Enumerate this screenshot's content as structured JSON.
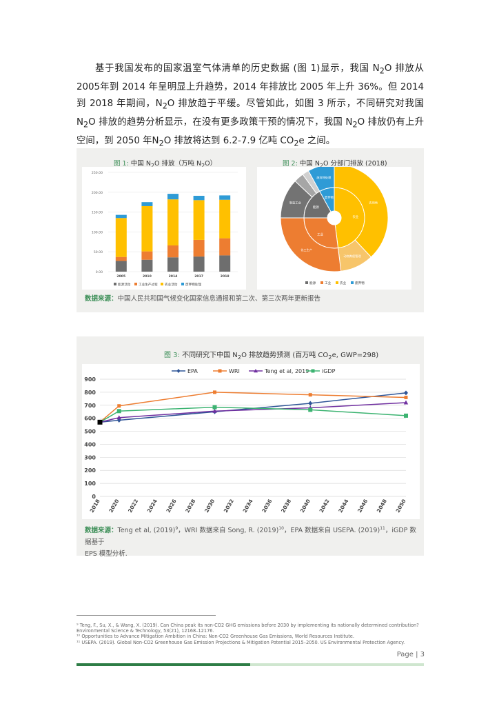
{
  "paragraph": {
    "l1": "基于我国发布的国家温室气体清单的历史数据 (图 1)显示，我国 N",
    "l1_sub": "2",
    "l1_end": "O 排放从 2005",
    "l2": "年到 2014 年呈明显上升趋势，2014 年排放比 2005 年上升 36%。但 2014 到 2018 年",
    "l3a": "期间，N",
    "l3_sub": "2",
    "l3b": "O 排放趋于平缓。尽管如此，如图 3 所示，不同研究对我国 N",
    "l3_sub2": "2",
    "l3c": "O 排放的趋势",
    "l4": "分析显示，在没有更多政策干预的情况下，我国 N",
    "l4_sub": "2",
    "l4b": "O 排放仍有上升空间，到 2050 年",
    "l5a": "N",
    "l5_sub": "2",
    "l5b": "O 排放将达到 6.2-7.9 亿吨 CO",
    "l5_sub2": "2",
    "l5c": "e 之间。"
  },
  "figure1": {
    "label": "图 1:",
    "title_a": "中国 N",
    "title_sub": "2",
    "title_b": "O 排放（万吨 N",
    "title_sub2": "2",
    "title_c": "O）"
  },
  "figure2": {
    "label": "图 2:",
    "title_a": "中国 N",
    "title_sub": "2",
    "title_b": "O 分部门排放 (2018)"
  },
  "source1": {
    "label": "数据来源：",
    "text": "中国人民共和国气候变化国家信息通报和第二次、第三次两年更新报告"
  },
  "figure3": {
    "label": "图 3:",
    "title_a": "不同研究下中国 N",
    "title_sub": "2",
    "title_b": "O 排放趋势预测 (百万吨 CO",
    "title_sub2": "2",
    "title_c": "e, GWP=298)"
  },
  "source3": {
    "label": "数据来源：",
    "text_a": "Teng et al, (2019)",
    "sup1": "9",
    "text_b": "，WRI 数据来自 Song, R. (2019)",
    "sup2": "10",
    "text_c": "，EPA 数据来自 USEPA. (2019)",
    "sup3": "11",
    "text_d": "，iGDP 数据基于",
    "line2": "EPS 模型分析."
  },
  "footnotes": [
    "⁹ Teng, F., Su, X., & Wang, X. (2019). Can China peak its non-CO2 GHG emissions before 2030 by implementing its nationally determined contribution?",
    "Environmental Science & Technology, 53(21), 12168–12176.",
    "¹⁰ Opportunities to Advance Mitigation Ambition in China: Non-CO2 Greenhouse Gas Emissions, World Resources Institute.",
    "¹¹ USEPA. (2019). Global Non-CO2 Greenhouse Gas Emission Projections & Mitigation Potential 2015–2050. US Environmental Protection Agency."
  ],
  "page": {
    "label": "Page | 3"
  },
  "colors": {
    "energy": "#6e6e6e",
    "industry": "#ed7d31",
    "agriculture": "#ffc000",
    "waste": "#2e9bd6",
    "epa": "#2f5597",
    "wri": "#ed7d31",
    "teng": "#7030a0",
    "igdp": "#3cb371"
  },
  "chart_data": [
    {
      "type": "bar",
      "stacked": true,
      "categories": [
        "2005",
        "2010",
        "2014",
        "2017",
        "2018"
      ],
      "series": [
        {
          "name": "能源活动",
          "values": [
            27,
            30,
            36,
            38,
            41
          ]
        },
        {
          "name": "工业生产过程",
          "values": [
            10,
            21,
            30,
            42,
            43
          ]
        },
        {
          "name": "农业活动",
          "values": [
            98,
            114,
            116,
            100,
            97
          ]
        },
        {
          "name": "废弃物处理",
          "values": [
            8,
            10,
            14,
            11,
            11
          ]
        }
      ],
      "y_ticks": [
        "250.00",
        "200.00",
        "150.00",
        "100.00",
        "50.00",
        "0.00"
      ],
      "ylim": [
        0,
        250
      ],
      "legend": "bottom"
    },
    {
      "type": "pie",
      "variant": "sunburst",
      "inner": [
        {
          "name": "农业",
          "value": 48
        },
        {
          "name": "工业",
          "value": 27
        },
        {
          "name": "能源",
          "value": 17
        },
        {
          "name": "废弃物",
          "value": 8
        }
      ],
      "outer": [
        {
          "name": "农用地",
          "group": "农业",
          "value": 38,
          "label": "农用地"
        },
        {
          "name": "动物粪便管理",
          "group": "农业",
          "value": 10,
          "label": "动物粪便管理"
        },
        {
          "name": "化工生产",
          "group": "工业",
          "value": 27,
          "label": "化工生产"
        },
        {
          "name": "制造工业",
          "group": "能源",
          "value": 12,
          "label": "制造工业"
        },
        {
          "name": "能源-其他1",
          "group": "能源",
          "value": 3,
          "label": ""
        },
        {
          "name": "能源-其他2",
          "group": "能源",
          "value": 2,
          "label": ""
        },
        {
          "name": "废弃物处理",
          "group": "废弃物",
          "value": 8,
          "label": "废弃物处理"
        }
      ],
      "inner_labels": {
        "农业": "农业",
        "工业": "工业",
        "能源": "能源",
        "废弃物": "废弃物"
      },
      "legend_entries": [
        "能源",
        "工业",
        "农业",
        "废弃物"
      ],
      "legend": "bottom"
    },
    {
      "type": "line",
      "x_ticks": [
        "2018",
        "2020",
        "2022",
        "2024",
        "2026",
        "2028",
        "2030",
        "2032",
        "2034",
        "2036",
        "2038",
        "2040",
        "2042",
        "2044",
        "2046",
        "2048",
        "2050"
      ],
      "xlim": [
        2018,
        2050
      ],
      "y_ticks": [
        "900",
        "800",
        "700",
        "600",
        "500",
        "400",
        "300",
        "200",
        "100",
        "0"
      ],
      "ylim": [
        0,
        900
      ],
      "legend": "top",
      "base_point": {
        "x": 2018,
        "y": 570
      },
      "series": [
        {
          "name": "EPA",
          "x": [
            2018,
            2020,
            2030,
            2040,
            2050
          ],
          "y": [
            570,
            585,
            650,
            715,
            795
          ]
        },
        {
          "name": "WRI",
          "x": [
            2018,
            2020,
            2030,
            2040,
            2050
          ],
          "y": [
            570,
            695,
            800,
            780,
            760
          ]
        },
        {
          "name": "Teng et al, 2019",
          "x": [
            2018,
            2020,
            2030,
            2040,
            2050
          ],
          "y": [
            570,
            605,
            655,
            680,
            720
          ]
        },
        {
          "name": "iGDP",
          "x": [
            2018,
            2020,
            2030,
            2040,
            2050
          ],
          "y": [
            570,
            655,
            685,
            665,
            620
          ]
        }
      ]
    }
  ]
}
